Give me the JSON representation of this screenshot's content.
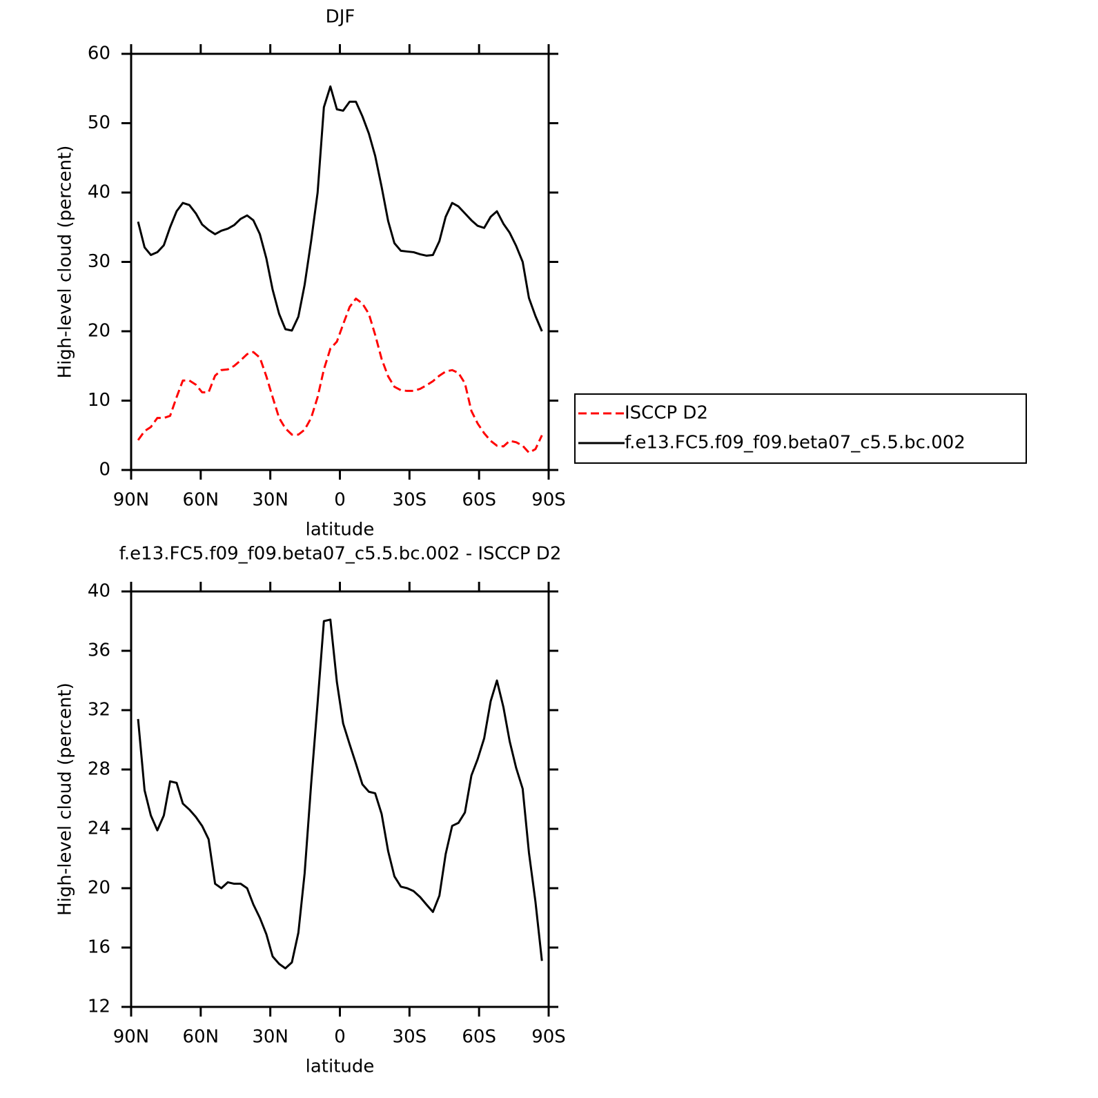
{
  "chart_data": [
    {
      "type": "line",
      "title": "DJF",
      "xlabel": "latitude",
      "ylabel": "High-level cloud (percent)",
      "x": [
        87.0,
        84.2,
        81.5,
        78.7,
        75.9,
        73.2,
        70.4,
        67.7,
        64.9,
        62.1,
        59.4,
        56.6,
        53.8,
        51.1,
        48.3,
        45.6,
        42.8,
        40.0,
        37.3,
        34.5,
        31.7,
        29.0,
        26.2,
        23.5,
        20.7,
        17.9,
        15.2,
        12.4,
        9.6,
        6.9,
        4.1,
        1.3,
        -1.4,
        -4.2,
        -6.9,
        -9.7,
        -12.5,
        -15.2,
        -18.0,
        -20.8,
        -23.5,
        -26.3,
        -29.0,
        -31.8,
        -34.6,
        -37.3,
        -40.1,
        -42.9,
        -45.6,
        -48.4,
        -51.1,
        -53.9,
        -56.7,
        -59.4,
        -62.2,
        -65.0,
        -67.7,
        -70.5,
        -73.2,
        -76.0,
        -78.8,
        -81.5,
        -84.3,
        -87.1
      ],
      "series": [
        {
          "name": "ISCCP D2",
          "color": "#ff0000",
          "line_style": "dashed",
          "values": [
            4.3,
            5.6,
            6.2,
            7.5,
            7.5,
            7.8,
            10.5,
            12.9,
            12.9,
            12.3,
            11.2,
            11.2,
            13.6,
            14.4,
            14.5,
            15.0,
            15.8,
            16.7,
            17.0,
            16.2,
            13.5,
            10.5,
            7.5,
            6.0,
            5.1,
            5.1,
            5.8,
            7.5,
            10.5,
            14.5,
            17.5,
            18.5,
            21.0,
            23.5,
            24.7,
            24.0,
            22.5,
            19.5,
            16.0,
            13.5,
            12.0,
            11.5,
            11.4,
            11.4,
            11.7,
            12.2,
            12.8,
            13.6,
            14.2,
            14.4,
            14.0,
            12.5,
            8.5,
            6.7,
            5.3,
            4.2,
            3.5,
            3.4,
            4.2,
            4.0,
            3.5,
            2.5,
            3.0,
            5.0
          ]
        },
        {
          "name": "f.e13.FC5.f09_f09.beta07_c5.5.bc.002",
          "color": "#000000",
          "line_style": "solid",
          "values": [
            35.8,
            32.1,
            31.0,
            31.4,
            32.4,
            35.0,
            37.3,
            38.5,
            38.2,
            37.0,
            35.4,
            34.6,
            34.0,
            34.5,
            34.8,
            35.3,
            36.2,
            36.7,
            36.0,
            34.0,
            30.5,
            26.0,
            22.5,
            20.3,
            20.1,
            22.1,
            26.7,
            33.0,
            40.0,
            52.3,
            55.3,
            52.0,
            51.8,
            53.1,
            53.1,
            51.0,
            48.5,
            45.3,
            40.8,
            35.9,
            32.7,
            31.6,
            31.5,
            31.4,
            31.1,
            30.9,
            31.0,
            33.0,
            36.5,
            38.5,
            38.0,
            37.0,
            36.0,
            35.2,
            34.9,
            36.5,
            37.3,
            35.5,
            34.2,
            32.3,
            30.0,
            24.8,
            22.2,
            20.0
          ]
        }
      ],
      "xlim": [
        90,
        -90
      ],
      "xticks": [
        {
          "value": 90,
          "label": "90N"
        },
        {
          "value": 60,
          "label": "60N"
        },
        {
          "value": 30,
          "label": "30N"
        },
        0,
        {
          "value": -30,
          "label": "30S"
        },
        {
          "value": -60,
          "label": "60S"
        },
        {
          "value": -90,
          "label": "90S"
        }
      ],
      "ylim": [
        0,
        60
      ],
      "yticks": [
        0,
        10,
        20,
        30,
        40,
        50,
        60
      ]
    },
    {
      "type": "line",
      "title": "f.e13.FC5.f09_f09.beta07_c5.5.bc.002 - ISCCP D2",
      "xlabel": "latitude",
      "ylabel": "High-level cloud (percent)",
      "x": [
        87.0,
        84.2,
        81.5,
        78.7,
        75.9,
        73.2,
        70.4,
        67.7,
        64.9,
        62.1,
        59.4,
        56.6,
        53.8,
        51.1,
        48.3,
        45.6,
        42.8,
        40.0,
        37.3,
        34.5,
        31.7,
        29.0,
        26.2,
        23.5,
        20.7,
        17.9,
        15.2,
        12.4,
        9.6,
        6.9,
        4.1,
        1.3,
        -1.4,
        -4.2,
        -6.9,
        -9.7,
        -12.5,
        -15.2,
        -18.0,
        -20.8,
        -23.5,
        -26.3,
        -29.0,
        -31.8,
        -34.6,
        -37.3,
        -40.1,
        -42.9,
        -45.6,
        -48.4,
        -51.1,
        -53.9,
        -56.7,
        -59.4,
        -62.2,
        -65.0,
        -67.7,
        -70.5,
        -73.2,
        -76.0,
        -78.8,
        -81.5,
        -84.3,
        -87.1
      ],
      "series": [
        {
          "color": "#000000",
          "line_style": "solid",
          "values": [
            31.4,
            26.6,
            24.9,
            23.9,
            24.9,
            27.2,
            27.1,
            25.7,
            25.3,
            24.8,
            24.2,
            23.3,
            20.3,
            20.0,
            20.4,
            20.3,
            20.3,
            20.0,
            18.9,
            18.0,
            16.9,
            15.4,
            14.9,
            14.6,
            15.0,
            17.0,
            21.0,
            27.0,
            32.5,
            38.0,
            38.1,
            33.9,
            31.1,
            29.7,
            28.4,
            27.0,
            26.5,
            26.4,
            25.0,
            22.5,
            20.8,
            20.1,
            20.0,
            19.8,
            19.4,
            18.9,
            18.4,
            19.5,
            22.3,
            24.2,
            24.4,
            25.1,
            27.6,
            28.7,
            30.1,
            32.6,
            34.0,
            32.2,
            29.9,
            28.1,
            26.7,
            22.4,
            19.1,
            15.1
          ]
        }
      ],
      "xlim": [
        90,
        -90
      ],
      "xticks": [
        {
          "value": 90,
          "label": "90N"
        },
        {
          "value": 60,
          "label": "60N"
        },
        {
          "value": 30,
          "label": "30N"
        },
        0,
        {
          "value": -30,
          "label": "30S"
        },
        {
          "value": -60,
          "label": "60S"
        },
        {
          "value": -90,
          "label": "90S"
        }
      ],
      "ylim": [
        12,
        40
      ],
      "yticks": [
        12,
        16,
        20,
        24,
        28,
        32,
        36,
        40
      ]
    }
  ]
}
